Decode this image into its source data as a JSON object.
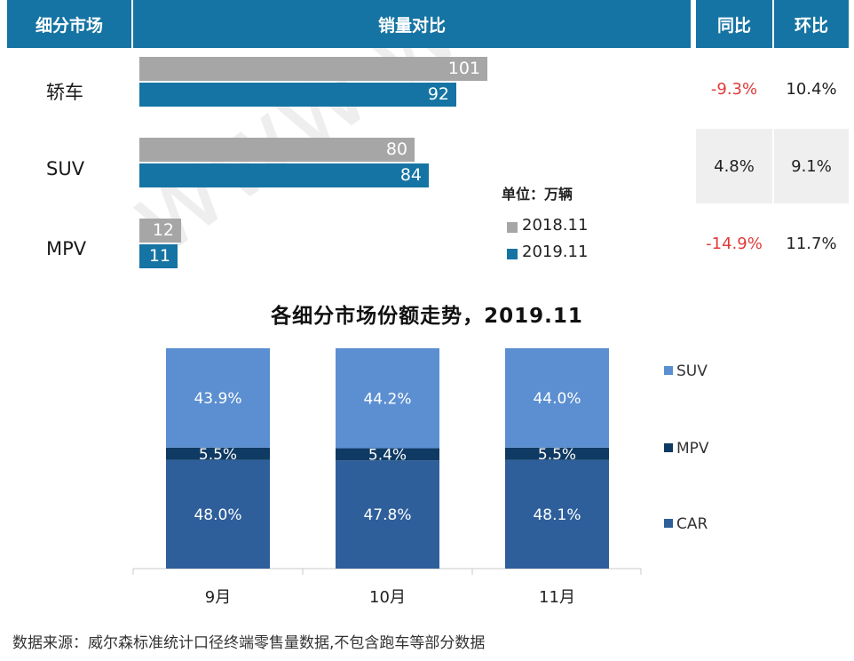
{
  "header": {
    "segment": "细分市场",
    "comparison": "销量对比",
    "yoy": "同比",
    "mom": "环比"
  },
  "unit_label": "单位：万辆",
  "legend1": [
    {
      "name": "2018.11",
      "color": "#a6a6a6"
    },
    {
      "name": "2019.11",
      "color": "#1574a3"
    }
  ],
  "rows": [
    {
      "label": "轿车",
      "v2018": "101",
      "v2019": "92",
      "yoy": "-9.3%",
      "mom": "10.4%"
    },
    {
      "label": "SUV",
      "v2018": "80",
      "v2019": "84",
      "yoy": "4.8%",
      "mom": "9.1%"
    },
    {
      "label": "MPV",
      "v2018": "12",
      "v2019": "11",
      "yoy": "-14.9%",
      "mom": "11.7%"
    }
  ],
  "watermark": "www.way-s.cn",
  "chart_title": "各细分市场份额走势，2019.11",
  "chart_data": [
    {
      "type": "bar",
      "orientation": "horizontal",
      "categories": [
        "轿车",
        "SUV",
        "MPV"
      ],
      "series": [
        {
          "name": "2018.11",
          "values": [
            101,
            80,
            12
          ]
        },
        {
          "name": "2019.11",
          "values": [
            92,
            84,
            11
          ]
        }
      ],
      "unit": "万辆"
    },
    {
      "type": "bar",
      "stacked": true,
      "title": "各细分市场份额走势，2019.11",
      "categories": [
        "9月",
        "10月",
        "11月"
      ],
      "series": [
        {
          "name": "CAR",
          "values": [
            48.0,
            47.8,
            48.1
          ],
          "labels": [
            "48.0%",
            "47.8%",
            "48.1%"
          ],
          "color": "#2e5f9b"
        },
        {
          "name": "MPV",
          "values": [
            5.5,
            5.4,
            5.5
          ],
          "labels": [
            "5.5%",
            "5.4%",
            "5.5%"
          ],
          "color": "#0e3a63"
        },
        {
          "name": "SUV",
          "values": [
            43.9,
            44.2,
            44.0
          ],
          "labels": [
            "43.9%",
            "44.2%",
            "44.0%"
          ],
          "color": "#5b8fd1"
        }
      ],
      "legend_position": "right"
    }
  ],
  "source": "数据来源：威尔森标准统计口径终端零售量数据,不包含跑车等部分数据"
}
